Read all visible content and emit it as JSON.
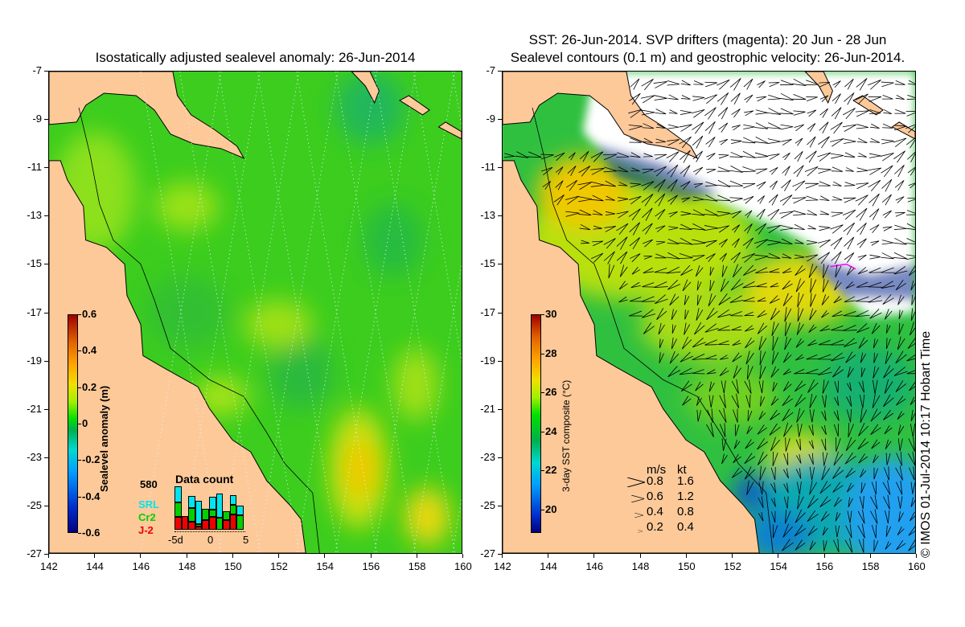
{
  "left_panel": {
    "title": "Isostatically adjusted sealevel anomaly: 26-Jun-2014",
    "colorbar": {
      "label": "Sealevel anomaly (m)",
      "ticks": [
        "0.6",
        "0.4",
        "0.2",
        "0",
        "-0.2",
        "-0.4",
        "-0.6"
      ],
      "range": [
        -0.6,
        0.6
      ]
    },
    "data_count": {
      "title": "Data count",
      "max_label": "580",
      "max": 580,
      "x_labels": [
        "-5d",
        "0",
        "5"
      ],
      "legend": [
        {
          "name": "SRL",
          "color": "#00e5f0"
        },
        {
          "name": "Cr2",
          "color": "#00d000"
        },
        {
          "name": "J-2",
          "color": "#f00000"
        }
      ],
      "bars": [
        {
          "J-2": 158,
          "Cr2": 192,
          "SRL": 202
        },
        {
          "J-2": 169,
          "Cr2": 0,
          "SRL": 0
        },
        {
          "J-2": 98,
          "Cr2": 172,
          "SRL": 158
        },
        {
          "J-2": 37,
          "Cr2": 30,
          "SRL": 300
        },
        {
          "J-2": 118,
          "Cr2": 148,
          "SRL": 0
        },
        {
          "J-2": 158,
          "Cr2": 101,
          "SRL": 158
        },
        {
          "J-2": 0,
          "Cr2": 148,
          "SRL": 310
        },
        {
          "J-2": 118,
          "Cr2": 121,
          "SRL": 0
        },
        {
          "J-2": 189,
          "Cr2": 128,
          "SRL": 125
        },
        {
          "J-2": 0,
          "Cr2": 179,
          "SRL": 128
        }
      ]
    }
  },
  "right_panel": {
    "title_line1": "SST: 26-Jun-2014. SVP drifters (magenta): 20 Jun - 28 Jun",
    "title_line2": "Sealevel contours (0.1 m) and geostrophic velocity: 26-Jun-2014.",
    "colorbar": {
      "label": "3-day SST composite (°C)",
      "ticks": [
        "30",
        "28",
        "26",
        "24",
        "22",
        "20"
      ],
      "range": [
        18.8,
        30
      ]
    },
    "velocity_legend": {
      "header_ms": "m/s",
      "header_kt": "kt",
      "rows": [
        {
          "ms": "0.8",
          "kt": "1.6"
        },
        {
          "ms": "0.6",
          "kt": "1.2"
        },
        {
          "ms": "0.4",
          "kt": "0.8"
        },
        {
          "ms": "0.2",
          "kt": "0.4"
        }
      ]
    }
  },
  "axes": {
    "lon_ticks": [
      "142",
      "144",
      "146",
      "148",
      "150",
      "152",
      "154",
      "156",
      "158",
      "160"
    ],
    "lat_ticks": [
      "-7",
      "-9",
      "-11",
      "-13",
      "-15",
      "-17",
      "-19",
      "-21",
      "-23",
      "-25",
      "-27"
    ]
  },
  "copyright": "© IMOS 01-Jul-2014 10:17 Hobart Time",
  "colors": {
    "land": "#fdc999",
    "ocean": "#3cd21e"
  }
}
